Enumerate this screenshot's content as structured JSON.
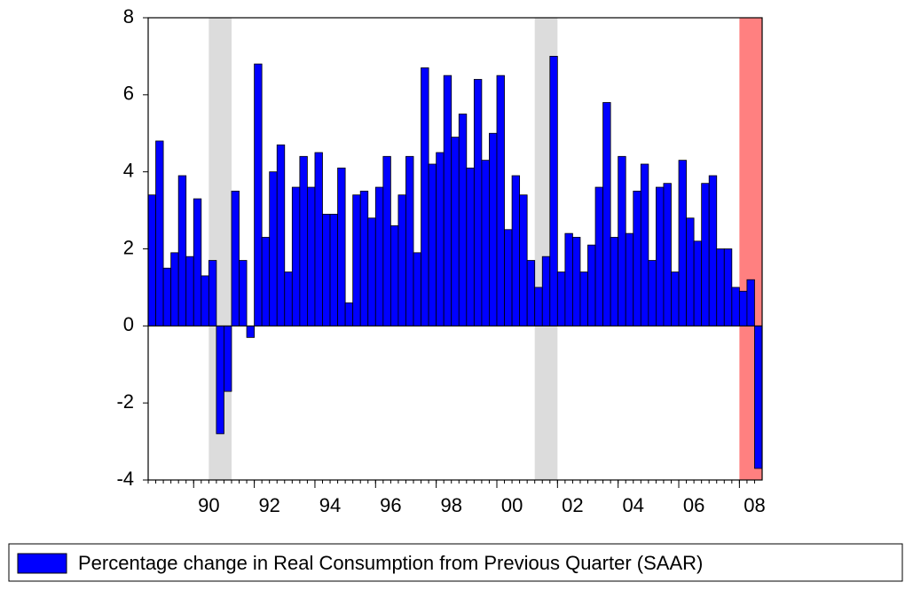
{
  "chart_data": {
    "type": "bar",
    "legend": "Percentage change in Real Consumption from Previous Quarter (SAAR)",
    "color": "#0000ff",
    "x": [
      1988.5,
      1988.75,
      1989,
      1989.25,
      1989.5,
      1989.75,
      1990,
      1990.25,
      1990.5,
      1990.75,
      1991,
      1991.25,
      1991.5,
      1991.75,
      1992,
      1992.25,
      1992.5,
      1992.75,
      1993,
      1993.25,
      1993.5,
      1993.75,
      1994,
      1994.25,
      1994.5,
      1994.75,
      1995,
      1995.25,
      1995.5,
      1995.75,
      1996,
      1996.25,
      1996.5,
      1996.75,
      1997,
      1997.25,
      1997.5,
      1997.75,
      1998,
      1998.25,
      1998.5,
      1998.75,
      1999,
      1999.25,
      1999.5,
      1999.75,
      2000,
      2000.25,
      2000.5,
      2000.75,
      2001,
      2001.25,
      2001.5,
      2001.75,
      2002,
      2002.25,
      2002.5,
      2002.75,
      2003,
      2003.25,
      2003.5,
      2003.75,
      2004,
      2004.25,
      2004.5,
      2004.75,
      2005,
      2005.25,
      2005.5,
      2005.75,
      2006,
      2006.25,
      2006.5,
      2006.75,
      2007,
      2007.25,
      2007.5,
      2007.75,
      2008,
      2008.25,
      2008.5
    ],
    "values": [
      3.4,
      4.8,
      1.5,
      1.9,
      3.9,
      1.8,
      3.3,
      1.3,
      1.7,
      -2.8,
      -1.7,
      3.5,
      1.7,
      -0.3,
      6.8,
      2.3,
      4.0,
      4.7,
      1.4,
      3.6,
      4.4,
      3.6,
      4.5,
      2.9,
      2.9,
      4.1,
      0.6,
      3.4,
      3.5,
      2.8,
      3.6,
      4.4,
      2.6,
      3.4,
      4.4,
      1.9,
      6.7,
      4.2,
      4.5,
      6.5,
      4.9,
      5.5,
      4.1,
      6.4,
      4.3,
      5.0,
      6.5,
      2.5,
      3.9,
      3.4,
      1.7,
      1.0,
      1.8,
      7.0,
      1.4,
      2.4,
      2.3,
      1.4,
      2.1,
      3.6,
      5.8,
      2.3,
      4.4,
      2.4,
      3.5,
      4.2,
      1.7,
      3.6,
      3.7,
      1.4,
      4.3,
      2.8,
      2.2,
      3.7,
      3.9,
      2.0,
      2.0,
      1.0,
      0.9,
      1.2,
      -3.7
    ],
    "xlim": [
      1988.5,
      2008.75
    ],
    "xticks": [
      {
        "value": 1990,
        "label": "90"
      },
      {
        "value": 1992,
        "label": "92"
      },
      {
        "value": 1994,
        "label": "94"
      },
      {
        "value": 1996,
        "label": "96"
      },
      {
        "value": 1998,
        "label": "98"
      },
      {
        "value": 2000,
        "label": "00"
      },
      {
        "value": 2002,
        "label": "02"
      },
      {
        "value": 2004,
        "label": "04"
      },
      {
        "value": 2006,
        "label": "06"
      },
      {
        "value": 2008,
        "label": "08"
      }
    ],
    "ylim": [
      -4,
      8
    ],
    "yticks": [
      -4,
      -2,
      0,
      2,
      4,
      6,
      8
    ],
    "shading": [
      {
        "x": [
          1990.5,
          1991.25
        ],
        "color": "#dcdcdc"
      },
      {
        "x": [
          2001.25,
          2002.0
        ],
        "color": "#dcdcdc"
      },
      {
        "x": [
          2008.0,
          2008.75
        ],
        "color": "#ff8080"
      }
    ]
  }
}
